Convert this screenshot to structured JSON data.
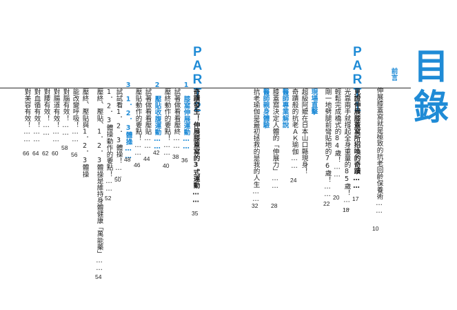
{
  "title": {
    "char1": "目",
    "char2": "錄"
  },
  "preface": {
    "heading": "前言",
    "line": "伸展膝蓋窩就是極致的抗老回齡保養術……",
    "page": "10"
  },
  "part1": {
    "label": "PART1",
    "title": "見證伸展膝蓋窩所招喚的奇蹟……",
    "title_page": "17",
    "items": [
      {
        "text": "光靠兩手就撐起全身重量的85歲！……",
        "page": "18"
      },
      {
        "text": "輕鬆完成橋式的84歲！……",
        "page": "20"
      },
      {
        "text": "剛一地劈腿前彎貼地的76歲！……",
        "page": "22"
      }
    ],
    "scene_heading": "現場直擊",
    "scene_items": [
      {
        "text": "超級阿嬤在日本山口縣現身！",
        "page": ""
      },
      {
        "text": "奇蹟般的抗老ＡＫ瑜伽……",
        "page": "24"
      }
    ],
    "doctor_heading": "醫師專業解說",
    "doctor_items": [
      {
        "text": "膝蓋窩決定人體的「伸展力」……",
        "page": "28"
      }
    ],
    "exp_heading": "醫師親身體驗",
    "exp_items": [
      {
        "text": "抗老瑜伽是最初拯救的是我的人生……",
        "page": "32"
      }
    ]
  },
  "part2": {
    "label": "PART2",
    "title": "奇蹟發生！伸展膝蓋窩的3式運動……",
    "title_page": "35",
    "sec1_heading": "1　膝窩伸展運動……",
    "sec1_page": "36",
    "sec1_items": [
      {
        "text": "試著做看看壓終……",
        "page": "38"
      },
      {
        "text": "壓終動作的要點！……",
        "page": "40"
      }
    ],
    "sec2_heading": "2　壓貼收腹運動……",
    "sec2_page": "42",
    "sec2_items": [
      {
        "text": "試著做看看壓貼……",
        "page": "44"
      },
      {
        "text": "壓貼動作的要點！……",
        "page": "46"
      }
    ],
    "sec3_heading": "3　1．2．3體操……",
    "sec3_page": "48",
    "sec3_items": [
      {
        "text": "試試看1．2．3體操！……",
        "page": "50"
      },
      {
        "text": "1．2．3體操動作的要點！……",
        "page": "52"
      }
    ],
    "extra_items": [
      {
        "text": "壓終、壓貼、1．2．3體操是維持身體健康「萬能藥」……",
        "page": "54"
      },
      {
        "text": "壓終、壓貼與1．2．3體操",
        "page": ""
      },
      {
        "text": "能改變呼吸！……",
        "page": "56"
      },
      {
        "text": "對腦有效！……",
        "page": "58"
      },
      {
        "text": "對腸道有效！……",
        "page": "60"
      },
      {
        "text": "對腰有效！……",
        "page": "62"
      },
      {
        "text": "對血循有效！……",
        "page": "64"
      },
      {
        "text": "對美容有效！……",
        "page": "66"
      }
    ]
  }
}
